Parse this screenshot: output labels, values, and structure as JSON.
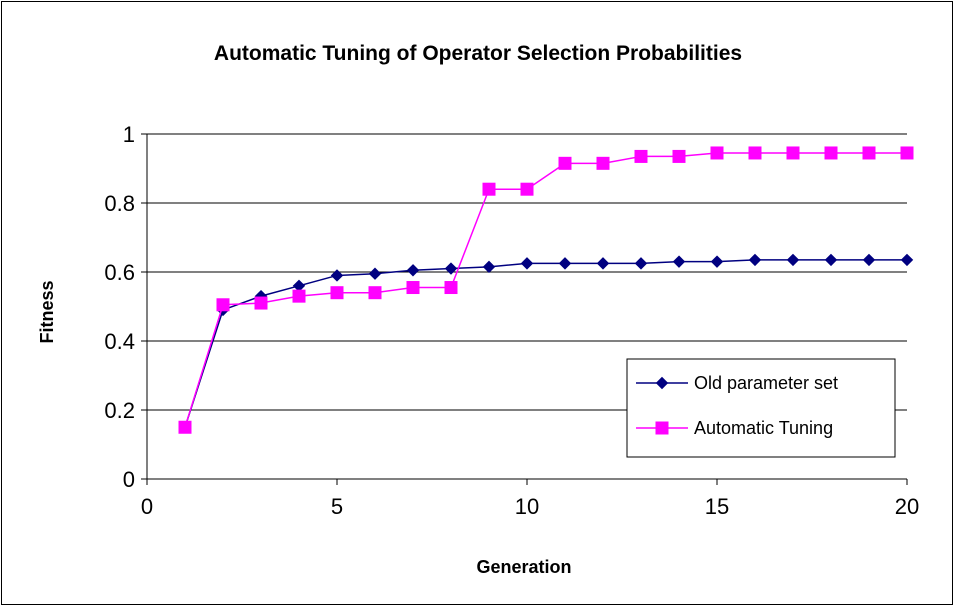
{
  "chart_data": {
    "type": "line",
    "title": "Automatic Tuning of Operator Selection Probabilities",
    "xlabel": "Generation",
    "ylabel": "Fitness",
    "xlim": [
      0,
      20
    ],
    "ylim": [
      0,
      1
    ],
    "xticks": [
      0,
      5,
      10,
      15,
      20
    ],
    "yticks": [
      0,
      0.2,
      0.4,
      0.6,
      0.8,
      1
    ],
    "ytick_labels": [
      "0",
      "0.2",
      "0.4",
      "0.6",
      "0.8",
      "1"
    ],
    "grid": "horizontal",
    "legend_position": "lower-right",
    "x": [
      1,
      2,
      3,
      4,
      5,
      6,
      7,
      8,
      9,
      10,
      11,
      12,
      13,
      14,
      15,
      16,
      17,
      18,
      19,
      20
    ],
    "series": [
      {
        "name": "Old parameter set",
        "color": "#000080",
        "marker": "diamond",
        "values": [
          0.15,
          0.49,
          0.53,
          0.56,
          0.59,
          0.595,
          0.605,
          0.61,
          0.615,
          0.625,
          0.625,
          0.625,
          0.625,
          0.63,
          0.63,
          0.635,
          0.635,
          0.635,
          0.635,
          0.635
        ]
      },
      {
        "name": "Automatic Tuning",
        "color": "#ff00ff",
        "marker": "square",
        "values": [
          0.15,
          0.505,
          0.51,
          0.53,
          0.54,
          0.54,
          0.555,
          0.555,
          0.84,
          0.84,
          0.915,
          0.915,
          0.935,
          0.935,
          0.945,
          0.945,
          0.945,
          0.945,
          0.945,
          0.945
        ]
      }
    ]
  }
}
